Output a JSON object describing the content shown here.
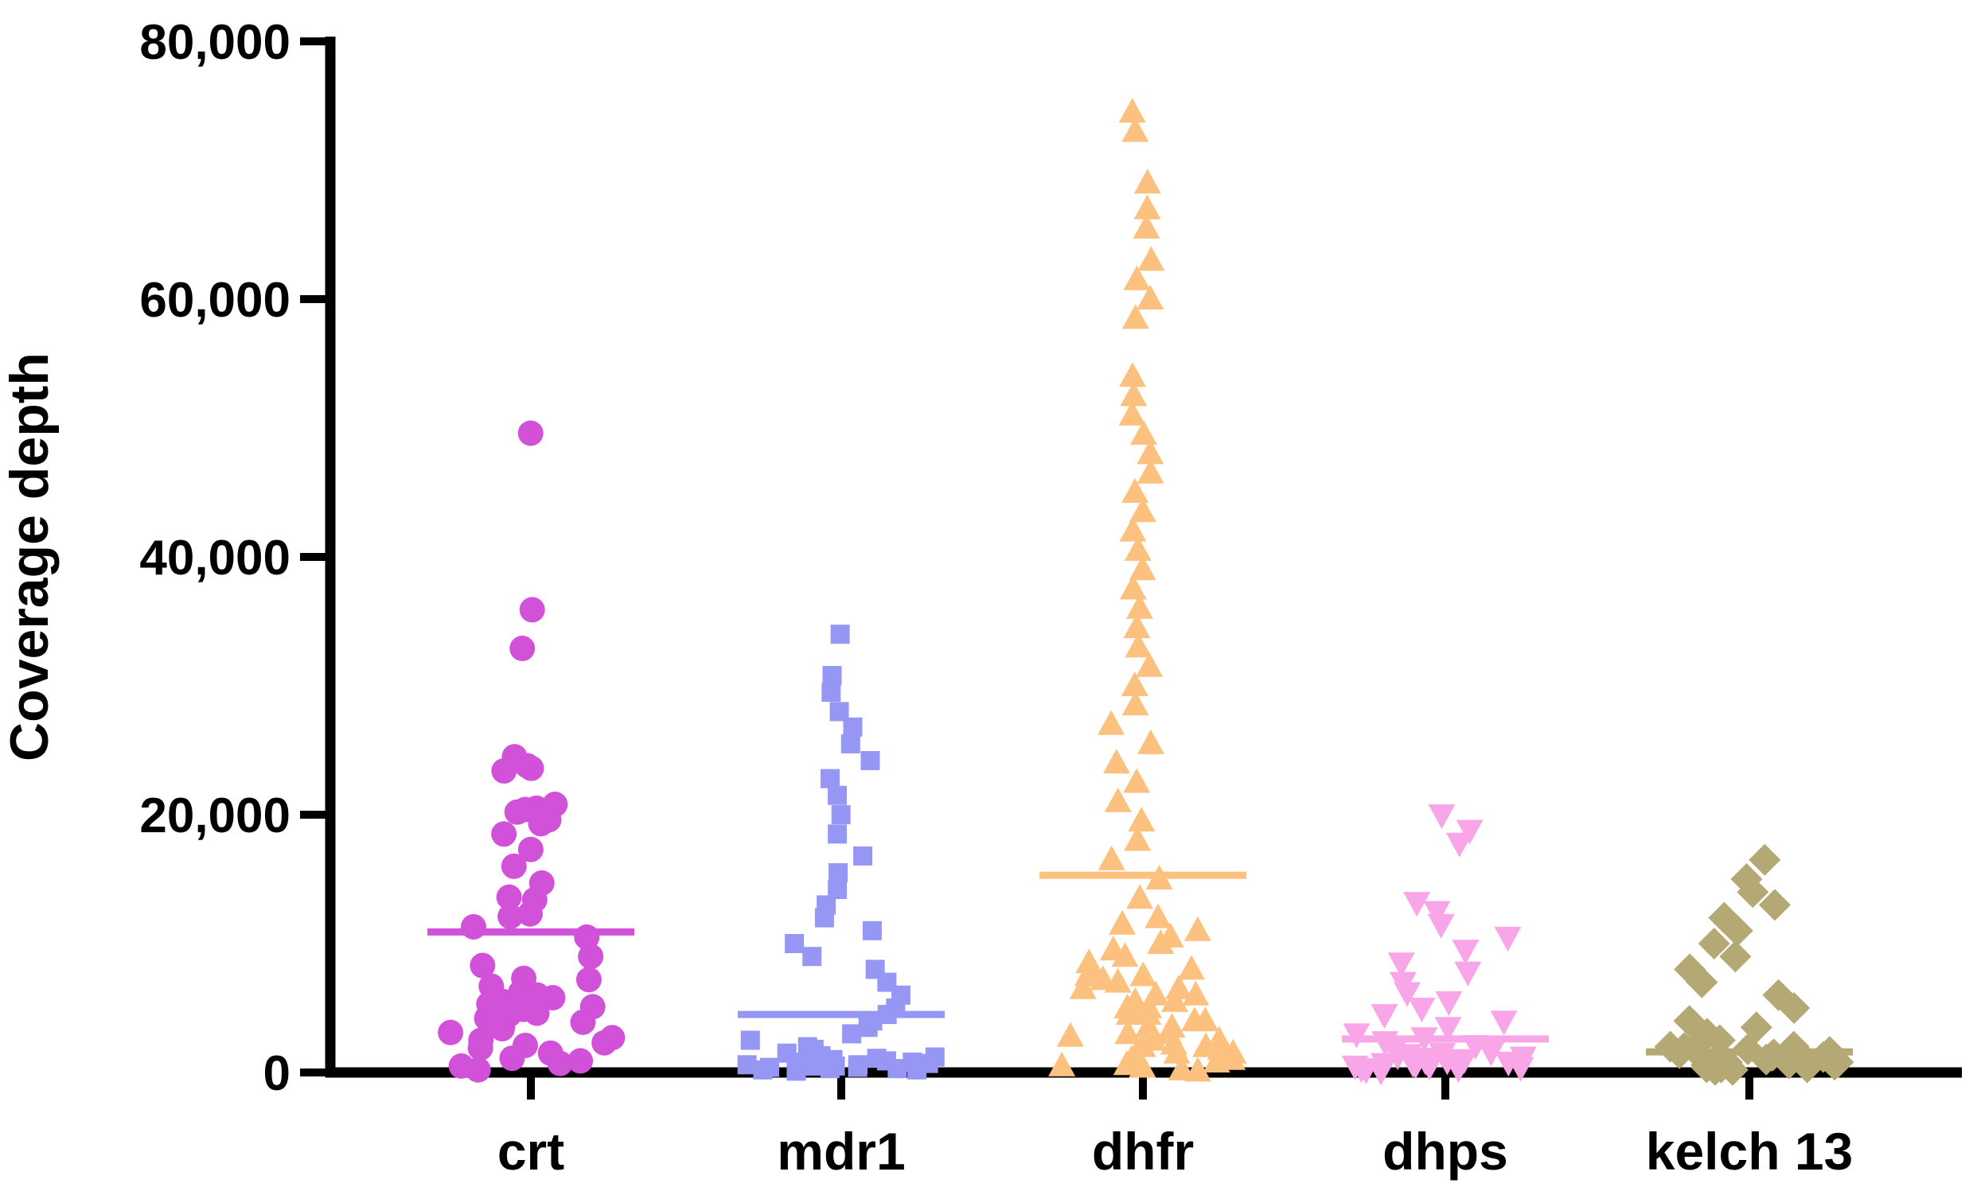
{
  "chart_data": {
    "type": "scatter",
    "title": "",
    "xlabel": "",
    "ylabel": "Coverage depth",
    "ylim": [
      0,
      80000
    ],
    "yticks": [
      {
        "value": 0,
        "label": "0"
      },
      {
        "value": 20000,
        "label": "20,000"
      },
      {
        "value": 40000,
        "label": "40,000"
      },
      {
        "value": 60000,
        "label": "60,000"
      },
      {
        "value": 80000,
        "label": "80,000"
      }
    ],
    "categories": [
      "crt",
      "mdr1",
      "dhfr",
      "dhps",
      "kelch 13"
    ],
    "grid": false,
    "legend": "none",
    "series": [
      {
        "category": "crt",
        "marker": "circle",
        "color": "#d152d9",
        "mean": 10900,
        "values": [
          49600,
          35900,
          32900,
          24500,
          23800,
          23600,
          23400,
          20800,
          20500,
          20400,
          20200,
          19600,
          19300,
          18500,
          17300,
          16000,
          14700,
          13600,
          13400,
          12300,
          12100,
          11300,
          10500,
          9000,
          8300,
          7300,
          7200,
          6700,
          6200,
          6000,
          5800,
          5500,
          5300,
          5100,
          4900,
          4800,
          4600,
          4500,
          4200,
          3900,
          3600,
          3400,
          3100,
          2700,
          2500,
          2300,
          2100,
          1900,
          1500,
          1100,
          900,
          700,
          500,
          200
        ]
      },
      {
        "category": "mdr1",
        "marker": "square",
        "color": "#9696f5",
        "mean": 4500,
        "values": [
          34000,
          30800,
          29500,
          28000,
          26800,
          25500,
          24200,
          22800,
          21500,
          20000,
          18500,
          16800,
          15500,
          14200,
          13000,
          12000,
          11000,
          10000,
          9000,
          8000,
          7000,
          6000,
          5000,
          4500,
          4000,
          3500,
          3000,
          2500,
          2000,
          1800,
          1500,
          1300,
          1100,
          900,
          800,
          700,
          600,
          500,
          400,
          300,
          200,
          1200,
          1000,
          800,
          600,
          500,
          400,
          300,
          200,
          100
        ]
      },
      {
        "category": "dhfr",
        "marker": "triangle",
        "color": "#fcc17f",
        "mean": 15300,
        "values": [
          74500,
          73000,
          69000,
          67000,
          65500,
          63000,
          61500,
          60000,
          58500,
          54000,
          52500,
          51000,
          49500,
          48000,
          46500,
          45000,
          43500,
          42000,
          40500,
          39000,
          37500,
          36000,
          34500,
          33000,
          31500,
          30000,
          28500,
          27000,
          25500,
          24000,
          22500,
          21000,
          19500,
          18000,
          16500,
          15000,
          13500,
          12000,
          11500,
          11000,
          10500,
          10000,
          9500,
          9000,
          8500,
          8000,
          7800,
          7500,
          7200,
          7000,
          6500,
          6000,
          5500,
          5000,
          4500,
          4000,
          3500,
          3000,
          2800,
          2500,
          2200,
          2000,
          1800,
          1500,
          1200,
          1000,
          800,
          600,
          400,
          200,
          100,
          6000,
          5000,
          4000,
          3000,
          2000,
          1000,
          500,
          1500,
          2500,
          3500,
          4500,
          5500,
          6500,
          7500
        ]
      },
      {
        "category": "dhps",
        "marker": "triangle-down",
        "color": "#f9a6e8",
        "mean": 2600,
        "values": [
          20000,
          18800,
          17800,
          13200,
          12500,
          11500,
          10500,
          9500,
          8500,
          7800,
          7000,
          6200,
          5500,
          5000,
          4500,
          4000,
          3500,
          3000,
          2700,
          2400,
          2100,
          1800,
          1600,
          1400,
          1200,
          1000,
          900,
          800,
          700,
          600,
          500,
          400,
          300,
          200,
          100,
          1500,
          1300,
          1100,
          900,
          700,
          500,
          300
        ]
      },
      {
        "category": "kelch 13",
        "marker": "diamond",
        "color": "#b4a874",
        "mean": 1600,
        "values": [
          16500,
          15000,
          14000,
          13000,
          12000,
          11000,
          10000,
          9000,
          8000,
          7000,
          6000,
          5000,
          4000,
          3500,
          3000,
          2500,
          2200,
          2000,
          1800,
          1600,
          1400,
          1200,
          1000,
          800,
          600,
          400,
          200,
          2000,
          1800,
          1500,
          1200,
          1000,
          800,
          600,
          400,
          200,
          1900,
          1600,
          1300,
          1000,
          700,
          400
        ]
      }
    ]
  }
}
